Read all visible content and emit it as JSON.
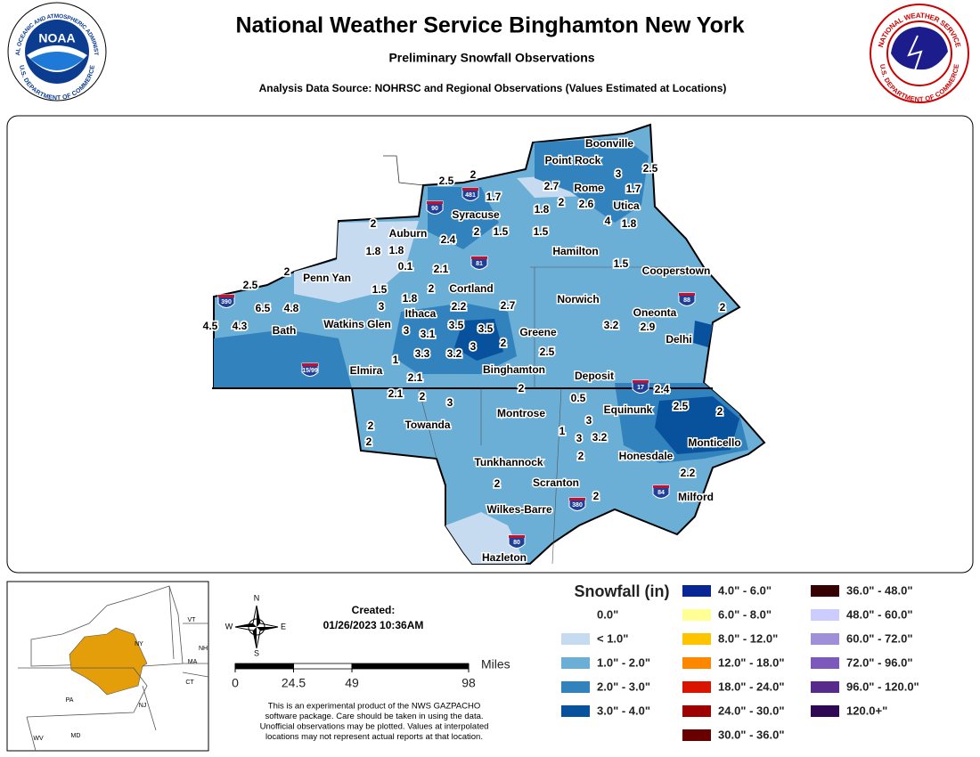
{
  "header": {
    "title": "National Weather Service Binghamton New York",
    "subtitle": "Preliminary Snowfall Observations",
    "source": "Analysis Data Source: NOHRSC and Regional Observations (Values Estimated at Locations)"
  },
  "logos": {
    "noaa": "NOAA",
    "noaa_ring_top": "NATIONAL OCEANIC AND ATMOSPHERIC ADMINISTRATION",
    "noaa_ring_bottom": "U.S. DEPARTMENT OF COMMERCE",
    "nws_ring_top": "NATIONAL WEATHER SERVICE",
    "nws_ring_bottom": "U.S. DEPARTMENT OF COMMERCE"
  },
  "cities": [
    "Boonville",
    "Point Rock",
    "Rome",
    "Syracuse",
    "Utica",
    "Auburn",
    "Hamilton",
    "Cooperstown",
    "Penn Yan",
    "Cortland",
    "Norwich",
    "Ithaca",
    "Oneonta",
    "Watkins Glen",
    "Bath",
    "Greene",
    "Delhi",
    "Elmira",
    "Binghamton",
    "Deposit",
    "Equinunk",
    "Montrose",
    "Towanda",
    "Monticello",
    "Honesdale",
    "Tunkhannock",
    "Scranton",
    "Milford",
    "Wilkes-Barre",
    "Hazleton"
  ],
  "observations": [
    2.5,
    2,
    1.7,
    2.7,
    2,
    2.6,
    1.8,
    3,
    2.5,
    1.7,
    4,
    1.8,
    2,
    2.4,
    2,
    1.5,
    1.5,
    1.8,
    1.8,
    0.1,
    2.1,
    1.5,
    2,
    2.5,
    1.5,
    1.8,
    2,
    3,
    6.5,
    4.8,
    2.2,
    2.7,
    2,
    4.5,
    4.3,
    3,
    3.1,
    3.5,
    3.5,
    3,
    2,
    3.2,
    2.9,
    1,
    3.3,
    3.2,
    2.5,
    2.1,
    2,
    0.5,
    2.4,
    2.1,
    2,
    3,
    2.5,
    2,
    3,
    1,
    3,
    3.2,
    2,
    2,
    2,
    2.2,
    2,
    2
  ],
  "interstates": [
    "481",
    "90",
    "81",
    "390",
    "15/99",
    "88",
    "17",
    "84",
    "380",
    "80"
  ],
  "legend": {
    "title": "Snowfall (in)",
    "items": [
      {
        "label": "0.0\"",
        "color": "#ffffff"
      },
      {
        "label": "< 1.0\"",
        "color": "#c6dbef"
      },
      {
        "label": "1.0\" - 2.0\"",
        "color": "#6baed6"
      },
      {
        "label": "2.0\" - 3.0\"",
        "color": "#3182bd"
      },
      {
        "label": "3.0\" - 4.0\"",
        "color": "#08519c"
      },
      {
        "label": "4.0\" - 6.0\"",
        "color": "#082694"
      },
      {
        "label": "6.0\" - 8.0\"",
        "color": "#ffff96"
      },
      {
        "label": "8.0\" - 12.0\"",
        "color": "#ffc400"
      },
      {
        "label": "12.0\" - 18.0\"",
        "color": "#ff8700"
      },
      {
        "label": "18.0\" - 24.0\"",
        "color": "#db1400"
      },
      {
        "label": "24.0\" - 30.0\"",
        "color": "#9e0000"
      },
      {
        "label": "30.0\" - 36.0\"",
        "color": "#690000"
      },
      {
        "label": "36.0\" - 48.0\"",
        "color": "#360000"
      },
      {
        "label": "48.0\" - 60.0\"",
        "color": "#ccccff"
      },
      {
        "label": "60.0\" - 72.0\"",
        "color": "#9f8fd8"
      },
      {
        "label": "72.0\" - 96.0\"",
        "color": "#7e59bc"
      },
      {
        "label": "96.0\" - 120.0\"",
        "color": "#572a8c"
      },
      {
        "label": "120.0+\"",
        "color": "#2e0854"
      }
    ]
  },
  "inset": {
    "states": [
      "VT",
      "NY",
      "NH",
      "MA",
      "CT",
      "PA",
      "NJ",
      "WV",
      "MD"
    ]
  },
  "compass": {
    "n": "N",
    "s": "S",
    "e": "E",
    "w": "W"
  },
  "created": {
    "label": "Created:",
    "timestamp": "01/26/2023 10:36AM"
  },
  "scale": {
    "unit": "Miles",
    "ticks": [
      0,
      24.5,
      49,
      98
    ]
  },
  "disclaimer": [
    "This is an experimental product of the NWS GAZPACHO",
    "software package. Care should be taken in using the data.",
    "Unofficial observations may be plotted. Values at interpolated",
    "locations may not represent actual reports at that location."
  ]
}
